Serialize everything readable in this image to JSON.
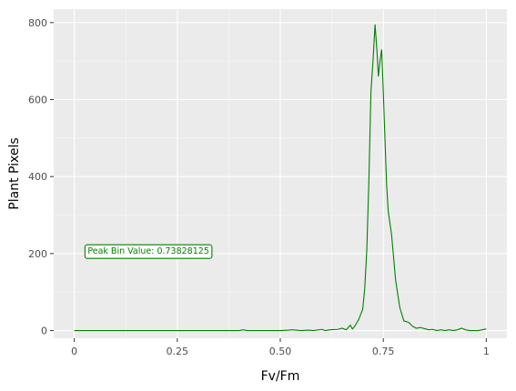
{
  "chart_data": {
    "type": "line",
    "xlabel": "Fv/Fm",
    "ylabel": "Plant Pixels",
    "xlim": [
      -0.05,
      1.05
    ],
    "ylim": [
      -20,
      835
    ],
    "x_ticks": [
      0,
      0.25,
      0.5,
      0.75,
      1
    ],
    "x_tick_labels": [
      "0",
      "0.25",
      "0.50",
      "0.75",
      "1"
    ],
    "y_ticks": [
      0,
      200,
      400,
      600,
      800
    ],
    "y_tick_labels": [
      "0",
      "200",
      "400",
      "600",
      "800"
    ],
    "grid": true,
    "legend": "none",
    "colors": {
      "panel": "#ebebeb",
      "grid_major": "#ffffff",
      "line": "#008000"
    },
    "annotation": {
      "text": "Peak Bin Value: 0.73828125",
      "x": 0.18,
      "y": 205
    },
    "series": [
      {
        "x": [
          0,
          0.05,
          0.1,
          0.15,
          0.2,
          0.25,
          0.3,
          0.35,
          0.4,
          0.41,
          0.42,
          0.45,
          0.5,
          0.52,
          0.53,
          0.55,
          0.57,
          0.58,
          0.6,
          0.61,
          0.62,
          0.64,
          0.65,
          0.66,
          0.67,
          0.675,
          0.68,
          0.69,
          0.7,
          0.705,
          0.71,
          0.715,
          0.72,
          0.725,
          0.73,
          0.735,
          0.738,
          0.742,
          0.746,
          0.75,
          0.754,
          0.758,
          0.762,
          0.77,
          0.78,
          0.79,
          0.8,
          0.81,
          0.815,
          0.82,
          0.83,
          0.84,
          0.85,
          0.86,
          0.87,
          0.88,
          0.89,
          0.9,
          0.91,
          0.92,
          0.93,
          0.94,
          0.95,
          0.96,
          0.97,
          0.98,
          0.99,
          1.0
        ],
        "y": [
          0,
          0,
          0,
          0,
          0,
          0,
          0,
          0,
          0,
          2,
          0,
          0,
          0,
          1,
          2,
          0,
          1,
          0,
          3,
          0,
          2,
          3,
          6,
          2,
          14,
          4,
          10,
          28,
          55,
          110,
          210,
          390,
          620,
          700,
          795,
          720,
          660,
          700,
          730,
          620,
          500,
          380,
          310,
          250,
          130,
          60,
          25,
          22,
          18,
          12,
          6,
          8,
          5,
          2,
          3,
          0,
          2,
          0,
          2,
          0,
          2,
          6,
          2,
          0,
          0,
          0,
          2,
          4
        ]
      }
    ]
  }
}
